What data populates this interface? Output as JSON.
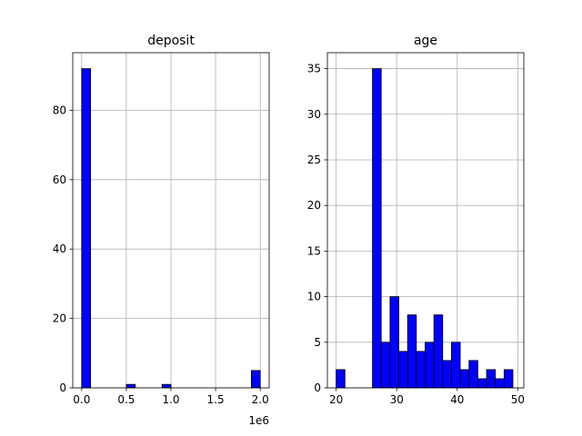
{
  "chart_data": [
    {
      "type": "histogram",
      "title": "deposit",
      "xlim": [
        -0.1,
        2.1
      ],
      "ylim": [
        0,
        96.6
      ],
      "x_ticks": [
        0.0,
        0.5,
        1.0,
        1.5,
        2.0
      ],
      "x_tick_labels": [
        "0.0",
        "0.5",
        "1.0",
        "1.5",
        "2.0"
      ],
      "y_ticks": [
        0,
        20,
        40,
        60,
        80
      ],
      "y_tick_labels": [
        "0",
        "20",
        "40",
        "60",
        "80"
      ],
      "offset_text": "1e6",
      "grid": true,
      "bar_color": "#0000ff",
      "edge_color": "#000000",
      "bins": [
        {
          "start": 0.0,
          "end": 0.1,
          "count": 92
        },
        {
          "start": 0.5,
          "end": 0.6,
          "count": 1
        },
        {
          "start": 0.9,
          "end": 1.0,
          "count": 1
        },
        {
          "start": 1.9,
          "end": 2.0,
          "count": 5
        }
      ]
    },
    {
      "type": "histogram",
      "title": "age",
      "xlim": [
        18.55,
        51.0
      ],
      "ylim": [
        0,
        36.75
      ],
      "x_ticks": [
        20,
        30,
        40,
        50
      ],
      "x_tick_labels": [
        "20",
        "30",
        "40",
        "50"
      ],
      "y_ticks": [
        0,
        5,
        10,
        15,
        20,
        25,
        30,
        35
      ],
      "y_tick_labels": [
        "0",
        "5",
        "10",
        "15",
        "20",
        "25",
        "30",
        "35"
      ],
      "grid": true,
      "bar_color": "#0000ff",
      "edge_color": "#000000",
      "bins": [
        {
          "start": 20.0,
          "end": 21.45,
          "count": 2
        },
        {
          "start": 26.0,
          "end": 27.45,
          "count": 35
        },
        {
          "start": 27.45,
          "end": 28.9,
          "count": 5
        },
        {
          "start": 28.9,
          "end": 30.35,
          "count": 10
        },
        {
          "start": 30.35,
          "end": 31.8,
          "count": 4
        },
        {
          "start": 31.8,
          "end": 33.25,
          "count": 8
        },
        {
          "start": 33.25,
          "end": 34.7,
          "count": 4
        },
        {
          "start": 34.7,
          "end": 36.15,
          "count": 5
        },
        {
          "start": 36.15,
          "end": 37.6,
          "count": 8
        },
        {
          "start": 37.6,
          "end": 39.05,
          "count": 3
        },
        {
          "start": 39.05,
          "end": 40.5,
          "count": 5
        },
        {
          "start": 40.5,
          "end": 41.95,
          "count": 2
        },
        {
          "start": 41.95,
          "end": 43.4,
          "count": 3
        },
        {
          "start": 43.4,
          "end": 44.85,
          "count": 1
        },
        {
          "start": 44.85,
          "end": 46.3,
          "count": 2
        },
        {
          "start": 46.3,
          "end": 47.75,
          "count": 1
        },
        {
          "start": 47.75,
          "end": 49.2,
          "count": 2
        }
      ]
    }
  ]
}
